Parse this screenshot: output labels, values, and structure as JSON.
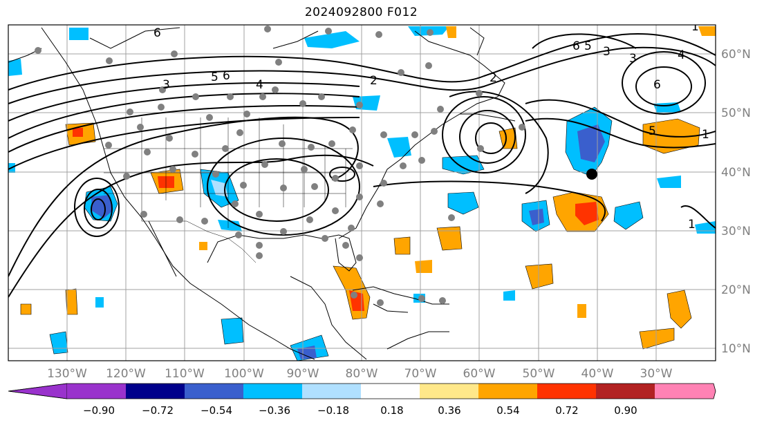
{
  "title": "2024092800 F012",
  "map": {
    "projection": "equirectangular",
    "lon_range": [
      -140,
      -20
    ],
    "lat_range": [
      8,
      65
    ],
    "lon_labels": [
      "130°W",
      "120°W",
      "110°W",
      "100°W",
      "90°W",
      "80°W",
      "70°W",
      "60°W",
      "50°W",
      "40°W",
      "30°W"
    ],
    "lat_labels": [
      "60°N",
      "50°N",
      "40°N",
      "30°N",
      "20°N",
      "10°N"
    ],
    "gridlines": true,
    "contour_labels": [
      "6",
      "3",
      "5",
      "6",
      "4",
      "2",
      "6",
      "3",
      "4",
      "5",
      "6",
      "5",
      "2",
      "3",
      "1",
      "1",
      "1"
    ]
  },
  "colorbar": {
    "ticks": [
      "−0.90",
      "−0.72",
      "−0.54",
      "−0.36",
      "−0.18",
      "0.18",
      "0.36",
      "0.54",
      "0.72",
      "0.90"
    ],
    "colors": [
      "#9932cc",
      "#00008b",
      "#3a5fcd",
      "#00bfff",
      "#b0e0ff",
      "#ffffff",
      "#ffe88a",
      "#ffa500",
      "#ff3300",
      "#b22222",
      "#ff82b4"
    ],
    "extend": "both"
  },
  "colors": {
    "blue_fill": "#00bfff",
    "mid_blue": "#3a5fcd",
    "orange_fill": "#ffa500",
    "red_fill": "#ff3300",
    "gray_dots": "#808080"
  }
}
